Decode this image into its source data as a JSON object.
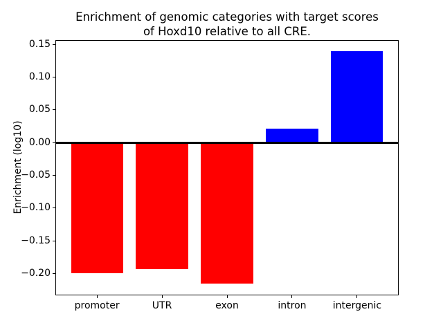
{
  "chart_data": {
    "type": "bar",
    "title": "Enrichment of genomic categories with target scores\nof Hoxd10 relative to all CRE.",
    "xlabel": "",
    "ylabel": "Enrichment (log10)",
    "categories": [
      "promoter",
      "UTR",
      "exon",
      "intron",
      "intergenic"
    ],
    "values": [
      -0.199,
      -0.193,
      -0.215,
      0.021,
      0.14
    ],
    "bar_colors": [
      "#ff0000",
      "#ff0000",
      "#ff0000",
      "#0000ff",
      "#0000ff"
    ],
    "negative_color": "#ff0000",
    "positive_color": "#0000ff",
    "yticks": [
      {
        "value": 0.15,
        "label": "0.15"
      },
      {
        "value": 0.1,
        "label": "0.10"
      },
      {
        "value": 0.05,
        "label": "0.05"
      },
      {
        "value": 0.0,
        "label": "0.00"
      },
      {
        "value": -0.05,
        "label": "−0.05"
      },
      {
        "value": -0.1,
        "label": "−0.10"
      },
      {
        "value": -0.15,
        "label": "−0.15"
      },
      {
        "value": -0.2,
        "label": "−0.20"
      }
    ],
    "ylim": [
      -0.2333,
      0.1567
    ],
    "xlim": [
      -0.64,
      4.64
    ],
    "bar_width_fraction": 0.8,
    "zero_line": true,
    "grid": false,
    "legend": null,
    "axis_color": "#000000",
    "background_color": "#ffffff"
  }
}
